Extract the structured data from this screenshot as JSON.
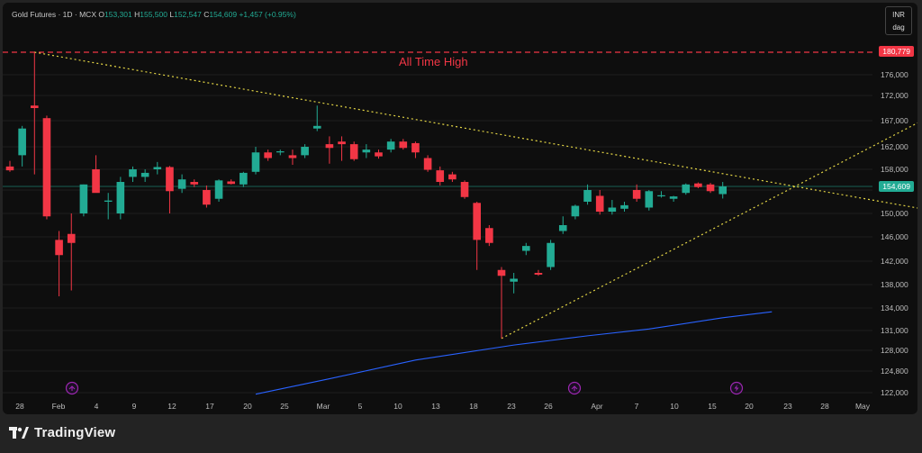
{
  "legend": {
    "symbol": "Gold Futures · 1D · MCX",
    "o_label": "O",
    "o_value": "153,301",
    "h_label": "H",
    "h_value": "155,500",
    "l_label": "L",
    "l_value": "152,547",
    "c_label": "C",
    "c_value": "154,609",
    "change": "+1,457 (+0.95%)"
  },
  "currency": {
    "line1": "INR",
    "line2": "dag"
  },
  "annotation": {
    "all_time_high": "All Time High"
  },
  "price_tags": {
    "ath": "180,779",
    "last": "154,609"
  },
  "footer": {
    "brand": "TradingView"
  },
  "colors": {
    "up": "#22ab94",
    "down": "#f23645",
    "ma": "#2962ff",
    "trend": "#e4d645",
    "event": "#9c27b0"
  },
  "icons": [
    "split-arrow-icon",
    "split-arrow-icon",
    "lightning-icon"
  ],
  "chart_data": {
    "type": "candlestick",
    "y_ticks": [
      122000,
      124800,
      128000,
      131000,
      134000,
      138000,
      142000,
      146000,
      150000,
      154000,
      158000,
      162000,
      167000,
      172000,
      176000
    ],
    "y_tick_labels": [
      "122,000",
      "124,800",
      "128,000",
      "131,000",
      "134,000",
      "138,000",
      "142,000",
      "146,000",
      "150,000",
      "",
      "158,000",
      "162,000",
      "167,000",
      "172,000",
      "176,000"
    ],
    "x_labels": [
      "28",
      "Feb",
      "4",
      "9",
      "12",
      "17",
      "20",
      "25",
      "Mar",
      "5",
      "10",
      "13",
      "18",
      "23",
      "26",
      "Apr",
      "7",
      "10",
      "15",
      "20",
      "23",
      "28",
      "May"
    ],
    "ath": 180779,
    "last": 154609,
    "candles": [
      {
        "o": 158500,
        "h": 159500,
        "l": 157500,
        "c": 157800
      },
      {
        "o": 160500,
        "h": 166000,
        "l": 158500,
        "c": 165500
      },
      {
        "o": 170000,
        "h": 180779,
        "l": 157000,
        "c": 169500
      },
      {
        "o": 167500,
        "h": 168000,
        "l": 149000,
        "c": 149500
      },
      {
        "o": 145500,
        "h": 147000,
        "l": 136000,
        "c": 143000
      },
      {
        "o": 146500,
        "h": 150000,
        "l": 137000,
        "c": 145000
      },
      {
        "o": 150000,
        "h": 155000,
        "l": 149500,
        "c": 155000
      },
      {
        "o": 158000,
        "h": 160500,
        "l": 154000,
        "c": 153500
      },
      {
        "o": 152000,
        "h": 153500,
        "l": 149000,
        "c": 152200
      },
      {
        "o": 150000,
        "h": 156500,
        "l": 149000,
        "c": 155500
      },
      {
        "o": 156500,
        "h": 158500,
        "l": 155500,
        "c": 158000
      },
      {
        "o": 156500,
        "h": 158000,
        "l": 155500,
        "c": 157300
      },
      {
        "o": 158000,
        "h": 159300,
        "l": 157000,
        "c": 158400
      },
      {
        "o": 158400,
        "h": 158600,
        "l": 150000,
        "c": 153800
      },
      {
        "o": 154200,
        "h": 157000,
        "l": 153500,
        "c": 156000
      },
      {
        "o": 155500,
        "h": 156000,
        "l": 154500,
        "c": 155000
      },
      {
        "o": 154000,
        "h": 154800,
        "l": 151000,
        "c": 151500
      },
      {
        "o": 152500,
        "h": 156000,
        "l": 152000,
        "c": 155800
      },
      {
        "o": 155600,
        "h": 156000,
        "l": 155000,
        "c": 155100
      },
      {
        "o": 155000,
        "h": 157500,
        "l": 154500,
        "c": 157300
      },
      {
        "o": 157500,
        "h": 162000,
        "l": 157000,
        "c": 161000
      },
      {
        "o": 161000,
        "h": 161500,
        "l": 159500,
        "c": 160000
      },
      {
        "o": 161000,
        "h": 161500,
        "l": 160500,
        "c": 161200
      },
      {
        "o": 160500,
        "h": 161500,
        "l": 158800,
        "c": 160000
      },
      {
        "o": 160500,
        "h": 162500,
        "l": 160000,
        "c": 162000
      },
      {
        "o": 165500,
        "h": 170000,
        "l": 165000,
        "c": 166000
      },
      {
        "o": 162500,
        "h": 164000,
        "l": 159000,
        "c": 161800
      },
      {
        "o": 163000,
        "h": 164000,
        "l": 159500,
        "c": 162500
      },
      {
        "o": 162500,
        "h": 163000,
        "l": 159500,
        "c": 159800
      },
      {
        "o": 161000,
        "h": 162500,
        "l": 160000,
        "c": 161500
      },
      {
        "o": 161000,
        "h": 161500,
        "l": 159900,
        "c": 160300
      },
      {
        "o": 161500,
        "h": 163500,
        "l": 161000,
        "c": 163000
      },
      {
        "o": 163000,
        "h": 163500,
        "l": 161500,
        "c": 161800
      },
      {
        "o": 162700,
        "h": 163000,
        "l": 160000,
        "c": 161000
      },
      {
        "o": 160000,
        "h": 160500,
        "l": 157500,
        "c": 157900
      },
      {
        "o": 157800,
        "h": 158500,
        "l": 154800,
        "c": 155500
      },
      {
        "o": 157000,
        "h": 157500,
        "l": 155500,
        "c": 156000
      },
      {
        "o": 155500,
        "h": 155800,
        "l": 152500,
        "c": 152800
      },
      {
        "o": 151800,
        "h": 152000,
        "l": 140500,
        "c": 145500
      },
      {
        "o": 147500,
        "h": 148000,
        "l": 144500,
        "c": 145000
      },
      {
        "o": 140500,
        "h": 141000,
        "l": 129800,
        "c": 139500
      },
      {
        "o": 138500,
        "h": 140000,
        "l": 136500,
        "c": 139000
      },
      {
        "o": 143700,
        "h": 145000,
        "l": 143000,
        "c": 144500
      },
      {
        "o": 140000,
        "h": 140500,
        "l": 139500,
        "c": 139700
      },
      {
        "o": 141000,
        "h": 145500,
        "l": 140500,
        "c": 145000
      },
      {
        "o": 147000,
        "h": 149500,
        "l": 146500,
        "c": 148000
      },
      {
        "o": 149500,
        "h": 151500,
        "l": 149000,
        "c": 151300
      },
      {
        "o": 152000,
        "h": 155000,
        "l": 151500,
        "c": 154000
      },
      {
        "o": 153000,
        "h": 154000,
        "l": 149800,
        "c": 150300
      },
      {
        "o": 150300,
        "h": 152300,
        "l": 149800,
        "c": 151000
      },
      {
        "o": 150800,
        "h": 152000,
        "l": 150300,
        "c": 151400
      },
      {
        "o": 154000,
        "h": 155000,
        "l": 152000,
        "c": 152500
      },
      {
        "o": 151000,
        "h": 154000,
        "l": 150500,
        "c": 153800
      },
      {
        "o": 153000,
        "h": 153800,
        "l": 152700,
        "c": 153100
      },
      {
        "o": 152500,
        "h": 153000,
        "l": 152000,
        "c": 152900
      },
      {
        "o": 153500,
        "h": 155200,
        "l": 153200,
        "c": 155000
      },
      {
        "o": 155200,
        "h": 155400,
        "l": 154300,
        "c": 154500
      },
      {
        "o": 155000,
        "h": 155300,
        "l": 153500,
        "c": 153800
      },
      {
        "o": 153301,
        "h": 155500,
        "l": 152547,
        "c": 154609
      }
    ],
    "ma_line": [
      {
        "i": 20,
        "v": 121800
      },
      {
        "i": 26,
        "v": 123800
      },
      {
        "i": 33,
        "v": 126500
      },
      {
        "i": 41,
        "v": 128800
      },
      {
        "i": 44,
        "v": 129500
      },
      {
        "i": 47,
        "v": 130200
      },
      {
        "i": 52,
        "v": 131200
      },
      {
        "i": 58,
        "v": 132700
      },
      {
        "i": 62,
        "v": 133500
      }
    ],
    "trend_lines": [
      {
        "from": {
          "i": 2,
          "v": 180779
        },
        "to": {
          "i": 75,
          "v": 150500
        }
      },
      {
        "from": {
          "i": 40,
          "v": 129800
        },
        "to": {
          "i": 75,
          "v": 168000
        }
      }
    ]
  }
}
